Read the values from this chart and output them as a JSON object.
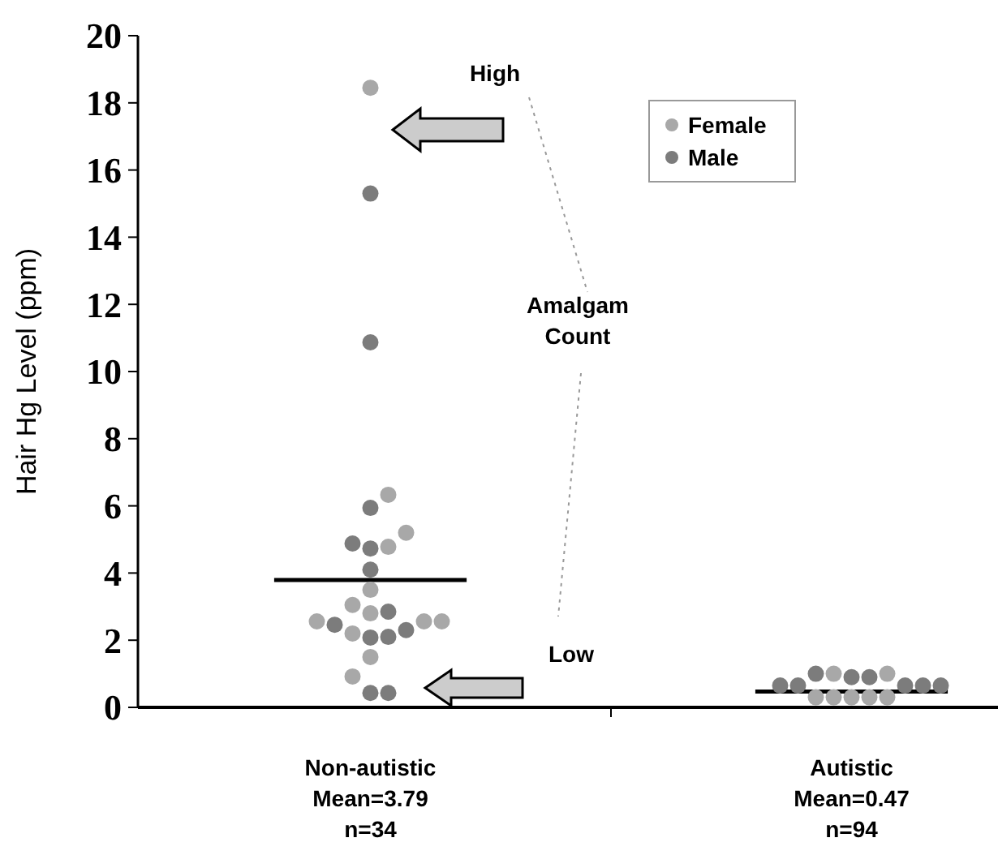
{
  "chart_data": {
    "type": "scatter",
    "ylabel": "Hair Hg Level (ppm)",
    "ylim": [
      0,
      20
    ],
    "categories": [
      "Non-autistic\nMean=3.79\nn=34",
      "Autistic\nMean=0.47\nn=94"
    ],
    "yticks": [
      0,
      2,
      4,
      6,
      8,
      10,
      12,
      14,
      16,
      18,
      20
    ],
    "grid": false,
    "legend": "top right",
    "marker": "circle",
    "annotations": [
      "High",
      "Amalgam\nCount",
      "Low"
    ],
    "ref_lines": [
      {
        "axis": "y",
        "value": 3.79,
        "color": "#000000"
      },
      {
        "axis": "y",
        "value": 0.47,
        "color": "#000000"
      }
    ],
    "series": [
      {
        "name": "Female",
        "color": "#a8a8a8",
        "x": [
          "Non-autistic\nMean=3.79\nn=34",
          "Non-autistic\nMean=3.79\nn=34",
          "Non-autistic\nMean=3.79\nn=34",
          "Non-autistic\nMean=3.79\nn=34",
          "Non-autistic\nMean=3.79\nn=34",
          "Non-autistic\nMean=3.79\nn=34",
          "Non-autistic\nMean=3.79\nn=34",
          "Non-autistic\nMean=3.79\nn=34",
          "Non-autistic\nMean=3.79\nn=34",
          "Non-autistic\nMean=3.79\nn=34",
          "Non-autistic\nMean=3.79\nn=34",
          "Non-autistic\nMean=3.79\nn=34",
          "Non-autistic\nMean=3.79\nn=34",
          "Autistic\nMean=0.47\nn=94",
          "Autistic\nMean=0.47\nn=94",
          "Autistic\nMean=0.47\nn=94",
          "Autistic\nMean=0.47\nn=94",
          "Autistic\nMean=0.47\nn=94",
          "Autistic\nMean=0.47\nn=94",
          "Autistic\nMean=0.47\nn=94"
        ],
        "values": [
          18.45,
          6.33,
          5.2,
          4.78,
          3.5,
          3.05,
          2.8,
          2.2,
          2.56,
          2.56,
          2.56,
          1.5,
          0.92,
          0.3,
          0.3,
          0.3,
          0.3,
          0.3,
          1.0,
          1.0
        ]
      },
      {
        "name": "Male",
        "color": "#7c7c7c",
        "x": [
          "Non-autistic\nMean=3.79\nn=34",
          "Non-autistic\nMean=3.79\nn=34",
          "Non-autistic\nMean=3.79\nn=34",
          "Non-autistic\nMean=3.79\nn=34",
          "Non-autistic\nMean=3.79\nn=34",
          "Non-autistic\nMean=3.79\nn=34",
          "Non-autistic\nMean=3.79\nn=34",
          "Non-autistic\nMean=3.79\nn=34",
          "Non-autistic\nMean=3.79\nn=34",
          "Non-autistic\nMean=3.79\nn=34",
          "Non-autistic\nMean=3.79\nn=34",
          "Non-autistic\nMean=3.79\nn=34",
          "Non-autistic\nMean=3.79\nn=34",
          "Autistic\nMean=0.47\nn=94",
          "Autistic\nMean=0.47\nn=94",
          "Autistic\nMean=0.47\nn=94",
          "Autistic\nMean=0.47\nn=94",
          "Autistic\nMean=0.47\nn=94",
          "Autistic\nMean=0.47\nn=94",
          "Autistic\nMean=0.47\nn=94",
          "Autistic\nMean=0.47\nn=94"
        ],
        "values": [
          15.3,
          10.87,
          5.94,
          4.73,
          4.88,
          4.1,
          2.1,
          2.46,
          2.85,
          2.08,
          2.3,
          0.43,
          0.43,
          0.65,
          0.65,
          0.65,
          0.65,
          0.65,
          1.0,
          0.9,
          0.9
        ]
      }
    ]
  }
}
